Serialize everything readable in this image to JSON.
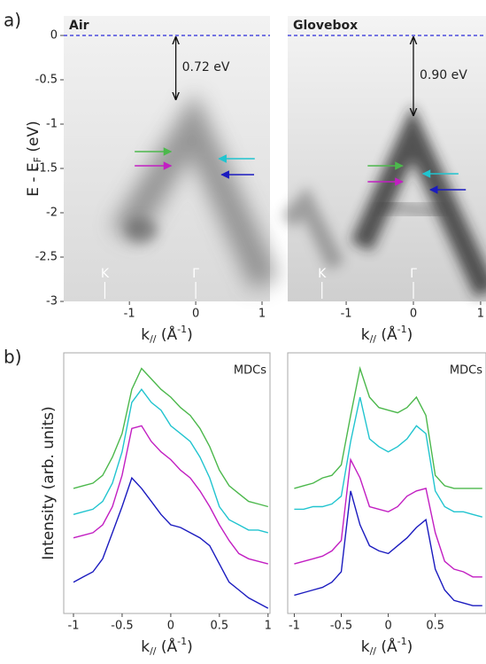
{
  "chart_data": [
    {
      "type": "image",
      "panel_label": "a)",
      "title": "Air",
      "y_label": {
        "base": "E - E",
        "sub": "F",
        "end": " (eV)"
      },
      "x_label": {
        "base": "k",
        "sub": "//",
        "mid": " (Å",
        "sup": "-1",
        "end": ")"
      },
      "xlim": [
        -1.99,
        1.12
      ],
      "ylim": [
        -3,
        0.22
      ],
      "xticks": [
        -1,
        0,
        1
      ],
      "yticks": [
        0,
        -0.5,
        -1,
        -1.5,
        -2,
        -2.5,
        -3
      ],
      "fermi_level": 0,
      "fermi_color": "#2b2bd9",
      "gap": {
        "k": -0.3,
        "from": 0,
        "to": -0.72,
        "label": "0.72 eV"
      },
      "markers": [
        {
          "k": -1.37,
          "label": "K"
        },
        {
          "k": 0,
          "label": "Γ"
        }
      ],
      "arrows": [
        {
          "from": -0.92,
          "to": -0.37,
          "E": -1.31,
          "color": "#4cb84c"
        },
        {
          "from": -0.92,
          "to": -0.37,
          "E": -1.47,
          "color": "#c21fc2"
        },
        {
          "from": 0.89,
          "to": 0.35,
          "E": -1.39,
          "color": "#21c4cf"
        },
        {
          "from": 0.88,
          "to": 0.39,
          "E": -1.57,
          "color": "#1b1bbf"
        }
      ]
    },
    {
      "type": "image",
      "title": "Glovebox",
      "x_label": {
        "base": "k",
        "sub": "//",
        "mid": " (Å",
        "sup": "-1",
        "end": ")"
      },
      "xlim": [
        -1.87,
        1.08
      ],
      "ylim": [
        -3,
        0.22
      ],
      "xticks": [
        -1,
        0,
        1
      ],
      "fermi_level": 0,
      "fermi_color": "#2b2bd9",
      "gap": {
        "k": 0,
        "from": 0,
        "to": -0.9,
        "label": "0.90 eV"
      },
      "markers": [
        {
          "k": -1.36,
          "label": "K"
        },
        {
          "k": 0,
          "label": "Γ"
        }
      ],
      "arrows": [
        {
          "from": -0.68,
          "to": -0.16,
          "E": -1.47,
          "color": "#4cb84c"
        },
        {
          "from": -0.68,
          "to": -0.16,
          "E": -1.65,
          "color": "#c21fc2"
        },
        {
          "from": 0.67,
          "to": 0.14,
          "E": -1.56,
          "color": "#21c4cf"
        },
        {
          "from": 0.78,
          "to": 0.25,
          "E": -1.74,
          "color": "#1b1bbf"
        }
      ]
    },
    {
      "type": "line",
      "panel_label": "b)",
      "annotation": "MDCs",
      "y_label": "Intensity (arb. units)",
      "x_label": {
        "base": "k",
        "sub": "//",
        "mid": " (Å",
        "sup": "-1",
        "end": ")"
      },
      "xlim": [
        -1.1,
        1.02
      ],
      "ylim": [
        0,
        10
      ],
      "xticks": [
        -1,
        -0.5,
        0,
        0.5,
        1
      ],
      "x": [
        -1,
        -0.9,
        -0.8,
        -0.7,
        -0.6,
        -0.5,
        -0.4,
        -0.3,
        -0.2,
        -0.1,
        0,
        0.1,
        0.2,
        0.3,
        0.4,
        0.5,
        0.6,
        0.7,
        0.8,
        0.9,
        1
      ],
      "series": [
        {
          "color": "#4cb84c",
          "values": [
            4.8,
            4.9,
            5.0,
            5.3,
            6.0,
            6.9,
            8.6,
            9.4,
            9.0,
            8.6,
            8.3,
            7.9,
            7.6,
            7.1,
            6.4,
            5.5,
            4.9,
            4.6,
            4.3,
            4.2,
            4.1
          ]
        },
        {
          "color": "#21c4cf",
          "values": [
            3.8,
            3.9,
            4.0,
            4.3,
            5.0,
            6.2,
            8.1,
            8.6,
            8.1,
            7.8,
            7.2,
            6.9,
            6.6,
            6.0,
            5.2,
            4.1,
            3.6,
            3.4,
            3.2,
            3.2,
            3.1
          ]
        },
        {
          "color": "#c21fc2",
          "values": [
            2.9,
            3.0,
            3.1,
            3.4,
            4.1,
            5.3,
            7.1,
            7.2,
            6.6,
            6.2,
            5.9,
            5.5,
            5.2,
            4.7,
            4.1,
            3.4,
            2.8,
            2.3,
            2.1,
            2.0,
            1.9
          ]
        },
        {
          "color": "#1b1bbf",
          "values": [
            1.2,
            1.4,
            1.6,
            2.1,
            3.1,
            4.1,
            5.2,
            4.8,
            4.3,
            3.8,
            3.4,
            3.3,
            3.1,
            2.9,
            2.6,
            1.9,
            1.2,
            0.9,
            0.6,
            0.4,
            0.2
          ]
        }
      ]
    },
    {
      "type": "line",
      "annotation": "MDCs",
      "x_label": {
        "base": "k",
        "sub": "//",
        "mid": " (Å",
        "sup": "-1",
        "end": ")"
      },
      "xlim": [
        -1.07,
        1.04
      ],
      "ylim": [
        0,
        10
      ],
      "xticks": [
        -1,
        -0.5,
        0,
        0.5
      ],
      "x": [
        -1,
        -0.9,
        -0.8,
        -0.7,
        -0.6,
        -0.5,
        -0.4,
        -0.3,
        -0.2,
        -0.1,
        0,
        0.1,
        0.2,
        0.3,
        0.4,
        0.5,
        0.6,
        0.7,
        0.8,
        0.9,
        1
      ],
      "series": [
        {
          "color": "#4cb84c",
          "values": [
            4.8,
            4.9,
            5.0,
            5.2,
            5.3,
            5.7,
            7.6,
            9.4,
            8.3,
            7.9,
            7.8,
            7.7,
            7.9,
            8.3,
            7.6,
            5.3,
            4.9,
            4.8,
            4.8,
            4.8,
            4.8
          ]
        },
        {
          "color": "#21c4cf",
          "values": [
            4.0,
            4.0,
            4.1,
            4.1,
            4.2,
            4.5,
            6.6,
            8.3,
            6.7,
            6.4,
            6.2,
            6.4,
            6.7,
            7.2,
            6.9,
            4.7,
            4.1,
            3.9,
            3.9,
            3.8,
            3.7
          ]
        },
        {
          "color": "#c21fc2",
          "values": [
            1.9,
            2.0,
            2.1,
            2.2,
            2.4,
            2.8,
            5.9,
            5.2,
            4.1,
            4.0,
            3.9,
            4.1,
            4.5,
            4.7,
            4.8,
            3.1,
            2.0,
            1.7,
            1.6,
            1.4,
            1.4
          ]
        },
        {
          "color": "#1b1bbf",
          "values": [
            0.7,
            0.8,
            0.9,
            1.0,
            1.2,
            1.6,
            4.7,
            3.4,
            2.6,
            2.4,
            2.3,
            2.6,
            2.9,
            3.3,
            3.6,
            1.7,
            0.9,
            0.5,
            0.4,
            0.3,
            0.3
          ]
        }
      ]
    }
  ]
}
